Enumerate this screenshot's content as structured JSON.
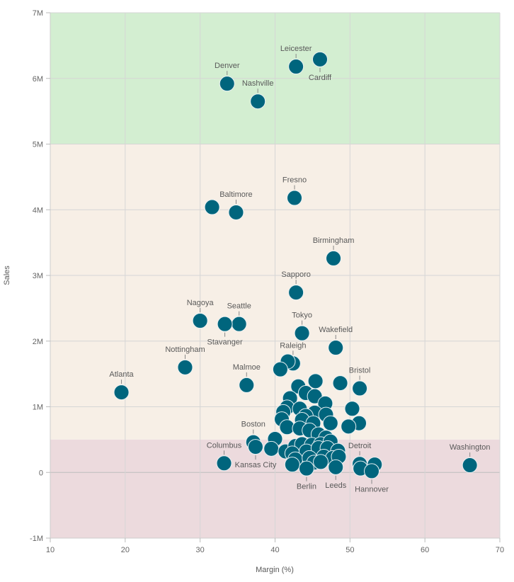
{
  "chart_data": {
    "type": "scatter",
    "xlabel": "Margin (%)",
    "ylabel": "Sales",
    "xlim": [
      10,
      70
    ],
    "ylim": [
      -1000000,
      7000000
    ],
    "x_ticks": [
      "10",
      "20",
      "30",
      "40",
      "50",
      "60",
      "70"
    ],
    "y_ticks": [
      "-1M",
      "0",
      "1M",
      "2M",
      "3M",
      "4M",
      "5M",
      "6M",
      "7M"
    ],
    "grid": true,
    "point_color": "#00657d",
    "bands": [
      {
        "from": 5000000,
        "to": 7000000,
        "color": "#d3eed1"
      },
      {
        "from": 500000,
        "to": 5000000,
        "color": "#f7efe6"
      },
      {
        "from": -1000000,
        "to": 500000,
        "color": "#ecdadd"
      }
    ],
    "points": [
      {
        "label": "Leicester",
        "x": 42.8,
        "y": 6180000
      },
      {
        "label": "Cardiff",
        "x": 46.0,
        "y": 6290000
      },
      {
        "label": "Denver",
        "x": 33.6,
        "y": 5920000
      },
      {
        "label": "Nashville",
        "x": 37.7,
        "y": 5650000
      },
      {
        "label": "Fresno",
        "x": 42.6,
        "y": 4180000
      },
      {
        "label": "Baltimore",
        "x": 34.8,
        "y": 3960000
      },
      {
        "label": "",
        "x": 31.6,
        "y": 4040000
      },
      {
        "label": "Birmingham",
        "x": 47.8,
        "y": 3260000
      },
      {
        "label": "Sapporo",
        "x": 42.8,
        "y": 2740000
      },
      {
        "label": "Tokyo",
        "x": 43.6,
        "y": 2120000
      },
      {
        "label": "Nagoya",
        "x": 30.0,
        "y": 2310000
      },
      {
        "label": "Seattle",
        "x": 35.2,
        "y": 2260000
      },
      {
        "label": "Stavanger",
        "x": 33.3,
        "y": 2260000
      },
      {
        "label": "Wakefield",
        "x": 48.1,
        "y": 1900000
      },
      {
        "label": "Nottingham",
        "x": 28.0,
        "y": 1600000
      },
      {
        "label": "Atlanta",
        "x": 19.5,
        "y": 1220000
      },
      {
        "label": "Malmoe",
        "x": 36.2,
        "y": 1330000
      },
      {
        "label": "Raleigh",
        "x": 42.4,
        "y": 1660000
      },
      {
        "label": "",
        "x": 41.7,
        "y": 1690000
      },
      {
        "label": "",
        "x": 40.7,
        "y": 1570000
      },
      {
        "label": "Bristol",
        "x": 51.3,
        "y": 1280000
      },
      {
        "label": "",
        "x": 45.4,
        "y": 1390000
      },
      {
        "label": "",
        "x": 43.1,
        "y": 1310000
      },
      {
        "label": "",
        "x": 48.7,
        "y": 1360000
      },
      {
        "label": "",
        "x": 44.1,
        "y": 1210000
      },
      {
        "label": "",
        "x": 45.3,
        "y": 1160000
      },
      {
        "label": "",
        "x": 42.0,
        "y": 1130000
      },
      {
        "label": "",
        "x": 46.7,
        "y": 1050000
      },
      {
        "label": "",
        "x": 50.3,
        "y": 970000
      },
      {
        "label": "",
        "x": 41.6,
        "y": 990000
      },
      {
        "label": "",
        "x": 43.3,
        "y": 970000
      },
      {
        "label": "",
        "x": 41.1,
        "y": 920000
      },
      {
        "label": "",
        "x": 45.3,
        "y": 910000
      },
      {
        "label": "",
        "x": 46.8,
        "y": 880000
      },
      {
        "label": "",
        "x": 44.1,
        "y": 860000
      },
      {
        "label": "",
        "x": 47.4,
        "y": 750000
      },
      {
        "label": "",
        "x": 40.9,
        "y": 810000
      },
      {
        "label": "",
        "x": 43.6,
        "y": 800000
      },
      {
        "label": "",
        "x": 45.1,
        "y": 750000
      },
      {
        "label": "",
        "x": 51.2,
        "y": 750000
      },
      {
        "label": "",
        "x": 49.8,
        "y": 700000
      },
      {
        "label": "",
        "x": 41.6,
        "y": 690000
      },
      {
        "label": "",
        "x": 43.3,
        "y": 670000
      },
      {
        "label": "",
        "x": 44.6,
        "y": 640000
      },
      {
        "label": "",
        "x": 45.8,
        "y": 580000
      },
      {
        "label": "",
        "x": 46.8,
        "y": 530000
      },
      {
        "label": "",
        "x": 40.0,
        "y": 510000
      },
      {
        "label": "Boston",
        "x": 37.1,
        "y": 460000
      },
      {
        "label": "Kansas City",
        "x": 37.4,
        "y": 390000
      },
      {
        "label": "Columbus",
        "x": 33.2,
        "y": 140000
      },
      {
        "label": "",
        "x": 39.5,
        "y": 360000
      },
      {
        "label": "",
        "x": 41.4,
        "y": 320000
      },
      {
        "label": "",
        "x": 42.7,
        "y": 400000
      },
      {
        "label": "",
        "x": 43.6,
        "y": 430000
      },
      {
        "label": "",
        "x": 44.9,
        "y": 420000
      },
      {
        "label": "",
        "x": 46.1,
        "y": 430000
      },
      {
        "label": "",
        "x": 47.4,
        "y": 470000
      },
      {
        "label": "",
        "x": 42.3,
        "y": 290000
      },
      {
        "label": "",
        "x": 44.2,
        "y": 320000
      },
      {
        "label": "",
        "x": 45.8,
        "y": 370000
      },
      {
        "label": "",
        "x": 47.0,
        "y": 370000
      },
      {
        "label": "",
        "x": 48.4,
        "y": 330000
      },
      {
        "label": "",
        "x": 42.7,
        "y": 200000
      },
      {
        "label": "",
        "x": 44.6,
        "y": 220000
      },
      {
        "label": "",
        "x": 46.5,
        "y": 240000
      },
      {
        "label": "",
        "x": 47.7,
        "y": 220000
      },
      {
        "label": "",
        "x": 48.5,
        "y": 240000
      },
      {
        "label": "",
        "x": 42.3,
        "y": 120000
      },
      {
        "label": "",
        "x": 45.2,
        "y": 150000
      },
      {
        "label": "",
        "x": 46.1,
        "y": 160000
      },
      {
        "label": "Berlin",
        "x": 44.2,
        "y": 60000
      },
      {
        "label": "Leeds",
        "x": 48.1,
        "y": 80000
      },
      {
        "label": "Detroit",
        "x": 51.3,
        "y": 130000
      },
      {
        "label": "",
        "x": 53.3,
        "y": 120000
      },
      {
        "label": "",
        "x": 51.4,
        "y": 60000
      },
      {
        "label": "Hannover",
        "x": 52.9,
        "y": 20000
      },
      {
        "label": "Washington",
        "x": 66.0,
        "y": 110000
      }
    ]
  }
}
